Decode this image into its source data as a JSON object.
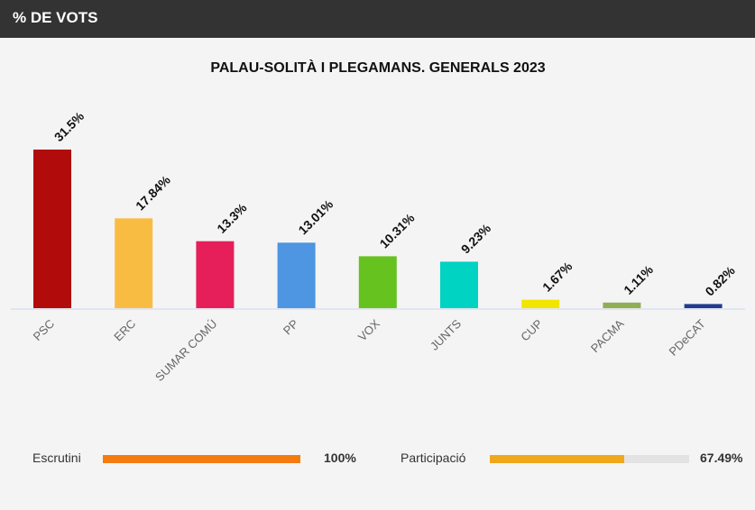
{
  "header": {
    "title": "% DE VOTS"
  },
  "chart_data": {
    "type": "bar",
    "title": "PALAU-SOLITÀ I PLEGAMANS. GENERALS 2023",
    "categories": [
      "PSC",
      "ERC",
      "SUMAR COMÚ",
      "PP",
      "VOX",
      "JUNTS",
      "CUP",
      "PACMA",
      "PDeCAT"
    ],
    "values": [
      31.5,
      17.84,
      13.3,
      13.01,
      10.31,
      9.23,
      1.67,
      1.11,
      0.82
    ],
    "value_labels": [
      "31.5%",
      "17.84%",
      "13.3%",
      "13.01%",
      "10.31%",
      "9.23%",
      "1.67%",
      "1.11%",
      "0.82%"
    ],
    "colors": [
      "#b10b0b",
      "#f9bc42",
      "#e61f5b",
      "#4e95e2",
      "#66c21f",
      "#00d3c2",
      "#f2e500",
      "#8faf52",
      "#223b8c"
    ],
    "xlabel": "",
    "ylabel": "",
    "ylim": [
      0,
      31.5
    ],
    "grid": false,
    "legend": "none"
  },
  "footer": {
    "scrutiny": {
      "label": "Escrutini",
      "value": "100%",
      "fraction": 1.0,
      "color": "#f57b10"
    },
    "participation": {
      "label": "Participació",
      "value": "67.49%",
      "fraction": 0.6749,
      "color": "#f0a71c"
    }
  }
}
